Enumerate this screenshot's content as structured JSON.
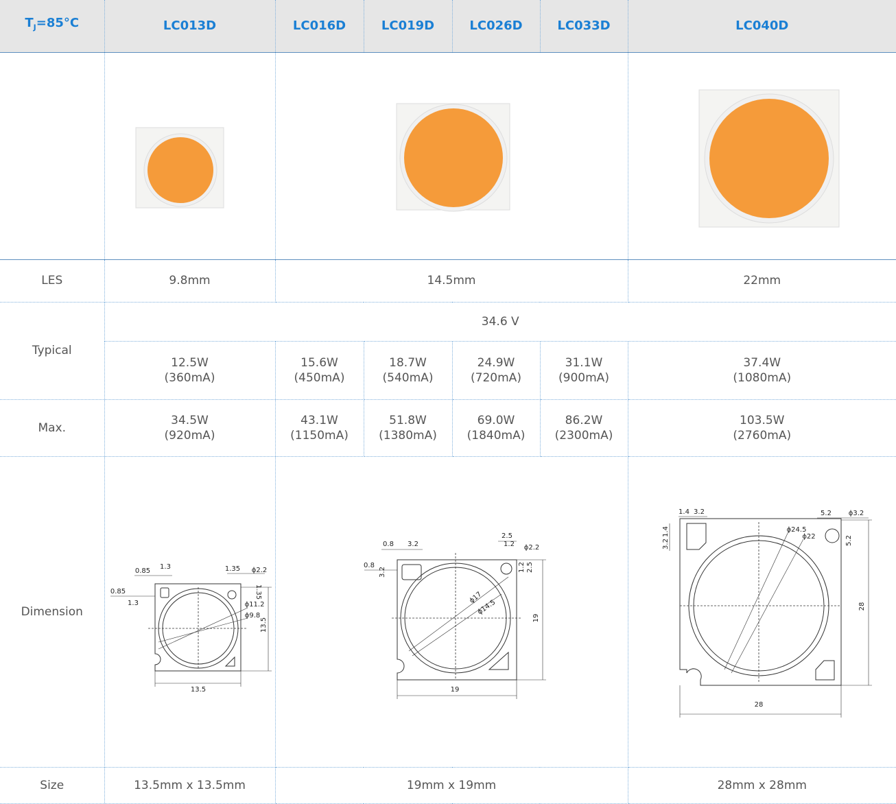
{
  "header": {
    "tj": {
      "t": "T",
      "sub": "J",
      "rest": "=85°C"
    },
    "models": [
      "LC013D",
      "LC016D",
      "LC019D",
      "LC026D",
      "LC033D",
      "LC040D"
    ]
  },
  "rows": {
    "les": {
      "label": "LES",
      "values": [
        "9.8mm",
        "14.5mm",
        "22mm"
      ]
    },
    "typical": {
      "label": "Typical",
      "voltage": "34.6 V",
      "values": [
        [
          "12.5W",
          "(360mA)"
        ],
        [
          "15.6W",
          "(450mA)"
        ],
        [
          "18.7W",
          "(540mA)"
        ],
        [
          "24.9W",
          "(720mA)"
        ],
        [
          "31.1W",
          "(900mA)"
        ],
        [
          "37.4W",
          "(1080mA)"
        ]
      ]
    },
    "max": {
      "label": "Max.",
      "values": [
        [
          "34.5W",
          "(920mA)"
        ],
        [
          "43.1W",
          "(1150mA)"
        ],
        [
          "51.8W",
          "(1380mA)"
        ],
        [
          "69.0W",
          "(1840mA)"
        ],
        [
          "86.2W",
          "(2300mA)"
        ],
        [
          "103.5W",
          "(2760mA)"
        ]
      ]
    },
    "dimension": {
      "label": "Dimension",
      "drawings": [
        {
          "labels": [
            "0.85",
            "1.3",
            "1.35",
            "ϕ2.2",
            "0.85",
            "1.3",
            "1.35",
            "ϕ11.2",
            "ϕ9.8",
            "13.5",
            "13.5"
          ]
        },
        {
          "labels": [
            "2.5",
            "0.8",
            "3.2",
            "1.2",
            "ϕ2.2",
            "0.8",
            "3.2",
            "1.2",
            "2.5",
            "ϕ17",
            "ϕ14.5",
            "19",
            "19"
          ]
        },
        {
          "labels": [
            "1.4",
            "3.2",
            "5.2",
            "ϕ3.2",
            "ϕ24.5",
            "ϕ22",
            "3.2",
            "1.4",
            "5.2",
            "28",
            "28"
          ]
        }
      ]
    },
    "size": {
      "label": "Size",
      "values": [
        "13.5mm x 13.5mm",
        "19mm x 19mm",
        "28mm x 28mm"
      ]
    }
  }
}
